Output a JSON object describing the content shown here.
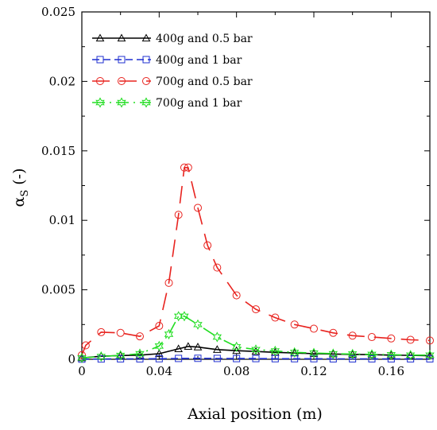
{
  "chart_data": {
    "type": "line",
    "xlabel": "Axial position (m)",
    "ylabel_main": "α",
    "ylabel_sub": "S",
    "ylabel_tail": " (-)",
    "xlim": [
      0,
      0.18
    ],
    "ylim": [
      0,
      0.025
    ],
    "x_ticks": [
      0,
      0.04,
      0.08,
      0.12,
      0.16
    ],
    "x_tick_labels": [
      "0",
      "0.04",
      "0.08",
      "0.12",
      "0.16"
    ],
    "y_ticks": [
      0,
      0.005,
      0.01,
      0.015,
      0.02,
      0.025
    ],
    "y_tick_labels": [
      "0",
      "0.005",
      "0.01",
      "0.015",
      "0.02",
      "0.025"
    ],
    "grid": false,
    "legend_position": "top-left",
    "series": [
      {
        "name": "400g and 0.5 bar",
        "color": "#000000",
        "marker": "triangle",
        "dash": "solid",
        "x": [
          0,
          0.01,
          0.02,
          0.03,
          0.04,
          0.05,
          0.055,
          0.06,
          0.07,
          0.08,
          0.09,
          0.1,
          0.11,
          0.12,
          0.13,
          0.14,
          0.15,
          0.16,
          0.17,
          0.18
        ],
        "y": [
          0.0001,
          0.00022,
          0.00027,
          0.0003,
          0.0004,
          0.00075,
          0.00092,
          0.00088,
          0.0007,
          0.00062,
          0.00056,
          0.0005,
          0.00045,
          0.0004,
          0.00038,
          0.00035,
          0.00033,
          0.0003,
          0.00028,
          0.00025
        ]
      },
      {
        "name": "400g and 1 bar",
        "color": "#1f2fd0",
        "marker": "square",
        "dash": "dashed",
        "x": [
          0,
          0.01,
          0.02,
          0.03,
          0.04,
          0.05,
          0.06,
          0.07,
          0.08,
          0.09,
          0.1,
          0.11,
          0.12,
          0.13,
          0.14,
          0.15,
          0.16,
          0.17,
          0.18
        ],
        "y": [
          1e-05,
          2e-05,
          3e-05,
          3e-05,
          4e-05,
          6e-05,
          7e-05,
          6e-05,
          5e-05,
          5e-05,
          4e-05,
          4e-05,
          4e-05,
          3e-05,
          3e-05,
          3e-05,
          3e-05,
          3e-05,
          3e-05
        ]
      },
      {
        "name": "700g and 0.5 bar",
        "color": "#e8231f",
        "marker": "circle",
        "dash": "longdash",
        "x": [
          0,
          0.002,
          0.01,
          0.02,
          0.03,
          0.04,
          0.045,
          0.05,
          0.053,
          0.055,
          0.06,
          0.065,
          0.07,
          0.08,
          0.09,
          0.1,
          0.11,
          0.12,
          0.13,
          0.14,
          0.15,
          0.16,
          0.17,
          0.18
        ],
        "y": [
          0.0003,
          0.001,
          0.00195,
          0.0019,
          0.00165,
          0.0024,
          0.0055,
          0.0104,
          0.0138,
          0.0138,
          0.0109,
          0.0082,
          0.0066,
          0.0046,
          0.0036,
          0.003,
          0.0025,
          0.0022,
          0.0019,
          0.0017,
          0.0016,
          0.0015,
          0.0014,
          0.00135
        ]
      },
      {
        "name": "700g and 1 bar",
        "color": "#22dd22",
        "marker": "star",
        "dash": "dashdot",
        "x": [
          0,
          0.01,
          0.02,
          0.03,
          0.04,
          0.045,
          0.05,
          0.053,
          0.06,
          0.07,
          0.08,
          0.09,
          0.1,
          0.11,
          0.12,
          0.13,
          0.14,
          0.15,
          0.16,
          0.17,
          0.18
        ],
        "y": [
          0.0001,
          0.0002,
          0.00028,
          0.0004,
          0.00095,
          0.0018,
          0.0031,
          0.0031,
          0.0025,
          0.0016,
          0.0009,
          0.0007,
          0.0006,
          0.0005,
          0.00045,
          0.0004,
          0.00038,
          0.00035,
          0.00033,
          0.0003,
          0.0003
        ]
      }
    ]
  }
}
